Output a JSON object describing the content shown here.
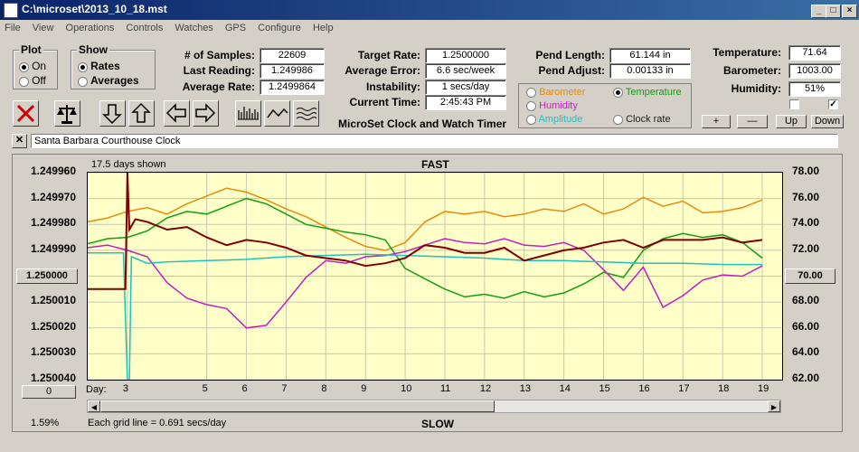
{
  "window": {
    "title": "C:\\microset\\2013_10_18.mst",
    "min_label": "_",
    "max_label": "□",
    "close_label": "×"
  },
  "menu": [
    "File",
    "View",
    "Operations",
    "Controls",
    "Watches",
    "GPS",
    "Configure",
    "Help"
  ],
  "plot_group": {
    "title": "Plot",
    "options": [
      {
        "label": "On",
        "selected": true
      },
      {
        "label": "Off",
        "selected": false
      }
    ]
  },
  "show_group": {
    "title": "Show",
    "options": [
      {
        "label": "Rates",
        "selected": true
      },
      {
        "label": "Averages",
        "selected": false
      }
    ]
  },
  "stats": {
    "samples_label": "# of Samples:",
    "samples": "22609",
    "last_label": "Last Reading:",
    "last": "1.249986",
    "avg_label": "Average Rate:",
    "avg": "1.2499864",
    "target_label": "Target Rate:",
    "target": "1.2500000",
    "avgerr_label": "Average Error:",
    "avgerr": "6.6 sec/week",
    "instab_label": "Instability:",
    "instab": "1 secs/day",
    "time_label": "Current Time:",
    "time": "2:45:43 PM",
    "pend_len_label": "Pend Length:",
    "pend_len": "61.144 in",
    "pend_adj_label": "Pend Adjust:",
    "pend_adj": "0.00133 in",
    "temp_label": "Temperature:",
    "temp": "71.64",
    "baro_label": "Barometer:",
    "baro": "1003.00",
    "hum_label": "Humidity:",
    "hum": "51%"
  },
  "product_title": "MicroSet Clock and Watch Timer",
  "sensor_options": [
    {
      "label": "Barometer",
      "color": "#e88a10",
      "selected": false
    },
    {
      "label": "Temperature",
      "color": "#10a010",
      "selected": true
    },
    {
      "label": "Humidity",
      "color": "#c020c0",
      "selected": false
    },
    {
      "label": "Clock rate",
      "color": "#202020",
      "selected": false
    },
    {
      "label": "Amplitude",
      "color": "#20c0c0",
      "selected": false
    }
  ],
  "adjust_buttons": {
    "plus": "+",
    "minus": "—",
    "up": "Up",
    "down": "Down"
  },
  "checkboxes": [
    {
      "checked": false
    },
    {
      "checked": true,
      "mark": "✓"
    }
  ],
  "watch_name": "Santa Barbara Courthouse Clock",
  "clear_label": "✕",
  "chart_labels": {
    "days_shown": "17.5 days shown",
    "top": "FAST",
    "bottom": "SLOW",
    "grid_note": "Each grid line = 0.691 secs/day",
    "percent": "1.59%",
    "day_label": "Day:",
    "left_button": "0",
    "center_button": "1.250000",
    "right_button": "70.00"
  },
  "chart_data": {
    "type": "line",
    "x_label": "Day",
    "xlim": [
      2.0,
      19.5
    ],
    "x_ticks": [
      3,
      5,
      6,
      7,
      8,
      9,
      10,
      11,
      12,
      13,
      14,
      15,
      16,
      17,
      18,
      19
    ],
    "y_left_ticks": [
      "1.249960",
      "1.249970",
      "1.249980",
      "1.249990",
      "1.250000",
      "1.250010",
      "1.250020",
      "1.250030",
      "1.250040"
    ],
    "ylim_left": [
      1.24996,
      1.25004
    ],
    "y_right_ticks": [
      "78.00",
      "76.00",
      "74.00",
      "72.00",
      "70.00",
      "68.00",
      "66.00",
      "64.00",
      "62.00"
    ],
    "ylim_right": [
      62,
      78
    ],
    "grid": true,
    "series": [
      {
        "name": "Barometer",
        "color": "#e88a10",
        "axis": "right",
        "x": [
          2.0,
          2.5,
          3.0,
          3.5,
          4.0,
          4.5,
          5.0,
          5.5,
          6.0,
          6.5,
          7.0,
          7.5,
          8.0,
          8.5,
          9.0,
          9.5,
          10.0,
          10.5,
          11.0,
          11.5,
          12.0,
          12.5,
          13.0,
          13.5,
          14.0,
          14.5,
          15.0,
          15.5,
          16.0,
          16.5,
          17.0,
          17.5,
          18.0,
          18.5,
          19.0
        ],
        "y": [
          74.2,
          74.5,
          75.0,
          75.3,
          74.8,
          75.6,
          76.2,
          76.8,
          76.5,
          75.9,
          75.2,
          74.6,
          73.8,
          73.0,
          72.3,
          72.0,
          72.6,
          74.2,
          75.0,
          74.8,
          75.0,
          74.6,
          74.8,
          75.2,
          75.0,
          75.6,
          74.8,
          75.2,
          76.1,
          75.4,
          75.8,
          74.9,
          75.0,
          75.3,
          75.9
        ]
      },
      {
        "name": "Temperature",
        "color": "#10a010",
        "axis": "right",
        "x": [
          2.0,
          2.5,
          3.0,
          3.5,
          4.0,
          4.5,
          5.0,
          5.5,
          6.0,
          6.5,
          7.0,
          7.5,
          8.0,
          8.5,
          9.0,
          9.5,
          10.0,
          10.5,
          11.0,
          11.5,
          12.0,
          12.5,
          13.0,
          13.5,
          14.0,
          14.5,
          15.0,
          15.5,
          16.0,
          16.5,
          17.0,
          17.5,
          18.0,
          18.5,
          19.0
        ],
        "y": [
          72.5,
          72.9,
          73.0,
          73.5,
          74.5,
          75.0,
          74.8,
          75.4,
          76.0,
          75.6,
          74.8,
          74.0,
          73.7,
          73.4,
          73.2,
          72.8,
          70.6,
          69.8,
          69.0,
          68.4,
          68.6,
          68.3,
          68.8,
          68.4,
          68.7,
          69.4,
          70.3,
          69.9,
          72.0,
          72.9,
          73.3,
          73.0,
          73.2,
          72.6,
          71.4
        ]
      },
      {
        "name": "Humidity",
        "color": "#c020c0",
        "axis": "right",
        "x": [
          2.0,
          2.5,
          3.0,
          3.5,
          4.0,
          4.5,
          5.0,
          5.5,
          6.0,
          6.5,
          7.0,
          7.5,
          8.0,
          8.5,
          9.0,
          9.5,
          10.0,
          10.5,
          11.0,
          11.5,
          12.0,
          12.5,
          13.0,
          13.5,
          14.0,
          14.5,
          15.0,
          15.5,
          16.0,
          16.5,
          17.0,
          17.5,
          18.0,
          18.5,
          19.0
        ],
        "y": [
          72.2,
          72.4,
          72.0,
          71.5,
          69.5,
          68.3,
          67.8,
          67.5,
          66.0,
          66.2,
          68.0,
          69.9,
          71.2,
          71.0,
          71.5,
          71.6,
          71.9,
          72.4,
          72.9,
          72.6,
          72.5,
          72.9,
          72.4,
          72.3,
          72.6,
          72.0,
          70.5,
          68.9,
          70.7,
          67.6,
          68.5,
          69.7,
          70.1,
          70.0,
          70.8
        ]
      },
      {
        "name": "Amplitude",
        "color": "#20c0c0",
        "axis": "right",
        "x": [
          2.0,
          2.5,
          2.9,
          3.0,
          3.05,
          3.1,
          3.5,
          4.0,
          5.0,
          6.0,
          7.0,
          8.0,
          9.0,
          10.0,
          11.0,
          12.0,
          13.0,
          14.0,
          15.0,
          16.0,
          17.0,
          18.0,
          19.0
        ],
        "y": [
          71.8,
          71.8,
          71.8,
          62.0,
          62.0,
          71.5,
          71.0,
          71.1,
          71.2,
          71.3,
          71.5,
          71.6,
          71.7,
          71.6,
          71.5,
          71.4,
          71.2,
          71.2,
          71.1,
          71.0,
          71.0,
          70.9,
          70.9
        ]
      },
      {
        "name": "Clock rate",
        "color": "#800000",
        "axis": "left",
        "x": [
          2.0,
          2.5,
          2.95,
          3.0,
          3.05,
          3.2,
          3.5,
          4.0,
          4.5,
          5.0,
          5.5,
          6.0,
          6.5,
          7.0,
          7.5,
          8.0,
          8.5,
          9.0,
          9.5,
          10.0,
          10.5,
          11.0,
          11.5,
          12.0,
          12.5,
          13.0,
          13.5,
          14.0,
          14.5,
          15.0,
          15.5,
          16.0,
          16.5,
          17.0,
          17.5,
          18.0,
          18.5,
          19.0
        ],
        "y": [
          1.250005,
          1.250005,
          1.250005,
          1.24996,
          1.249982,
          1.249978,
          1.249979,
          1.249982,
          1.249981,
          1.249985,
          1.249988,
          1.249986,
          1.249987,
          1.249989,
          1.249992,
          1.249993,
          1.249994,
          1.249996,
          1.249995,
          1.249993,
          1.249988,
          1.249989,
          1.249991,
          1.249991,
          1.249989,
          1.249994,
          1.249992,
          1.24999,
          1.249989,
          1.249987,
          1.249986,
          1.249989,
          1.249986,
          1.249986,
          1.249986,
          1.249985,
          1.249987,
          1.249986
        ]
      }
    ]
  }
}
